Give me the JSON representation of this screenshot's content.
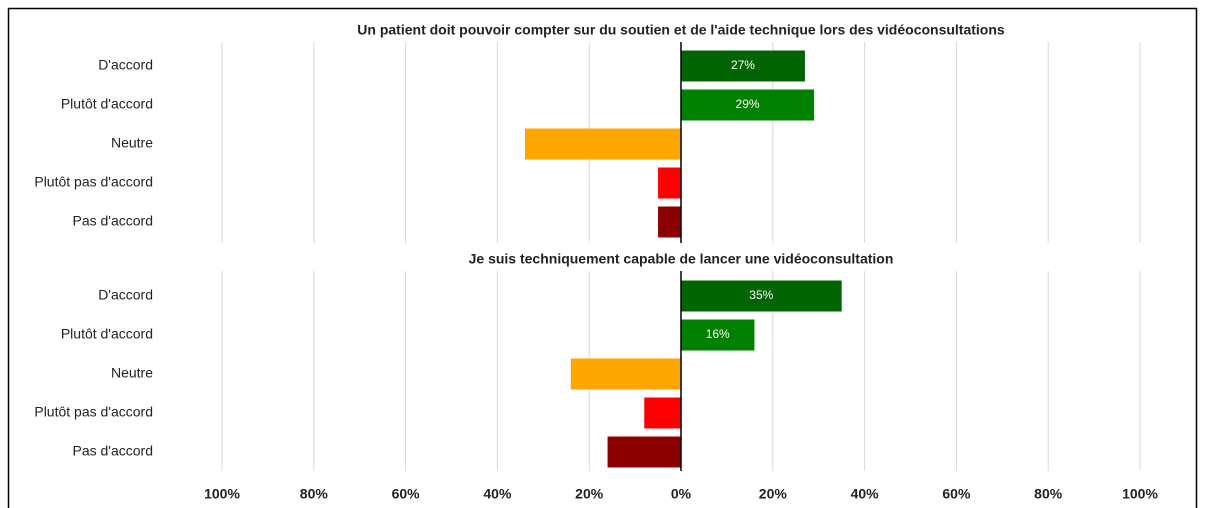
{
  "chart_data": [
    {
      "type": "bar",
      "title": "Un patient doit pouvoir compter sur du soutien et de l'aide technique lors des vidéoconsultations",
      "categories": [
        "D'accord",
        "Plutôt d'accord",
        "Neutre",
        "Plutôt pas d'accord",
        "Pas d'accord"
      ],
      "values": [
        27,
        29,
        -34,
        -5,
        -5
      ],
      "value_labels": [
        "27%",
        "29%",
        null,
        null,
        null
      ],
      "colors": [
        "#006400",
        "#008000",
        "#ffa500",
        "#ff0000",
        "#8b0000"
      ],
      "xlim": [
        -100,
        100
      ],
      "grid": true
    },
    {
      "type": "bar",
      "title": "Je suis techniquement capable de lancer une vidéoconsultation",
      "categories": [
        "D'accord",
        "Plutôt d'accord",
        "Neutre",
        "Plutôt pas d'accord",
        "Pas d'accord"
      ],
      "values": [
        35,
        16,
        -24,
        -8,
        -16
      ],
      "value_labels": [
        "35%",
        "16%",
        null,
        null,
        null
      ],
      "colors": [
        "#006400",
        "#008000",
        "#ffa500",
        "#ff0000",
        "#8b0000"
      ],
      "xlim": [
        -100,
        100
      ],
      "grid": true,
      "xticks": [
        {
          "value": -100,
          "label": "100%"
        },
        {
          "value": -80,
          "label": "80%"
        },
        {
          "value": -60,
          "label": "60%"
        },
        {
          "value": -40,
          "label": "40%"
        },
        {
          "value": -20,
          "label": "20%"
        },
        {
          "value": 0,
          "label": "0%"
        },
        {
          "value": 20,
          "label": "20%"
        },
        {
          "value": 40,
          "label": "40%"
        },
        {
          "value": 60,
          "label": "60%"
        },
        {
          "value": 80,
          "label": "80%"
        },
        {
          "value": 100,
          "label": "100%"
        }
      ]
    }
  ]
}
